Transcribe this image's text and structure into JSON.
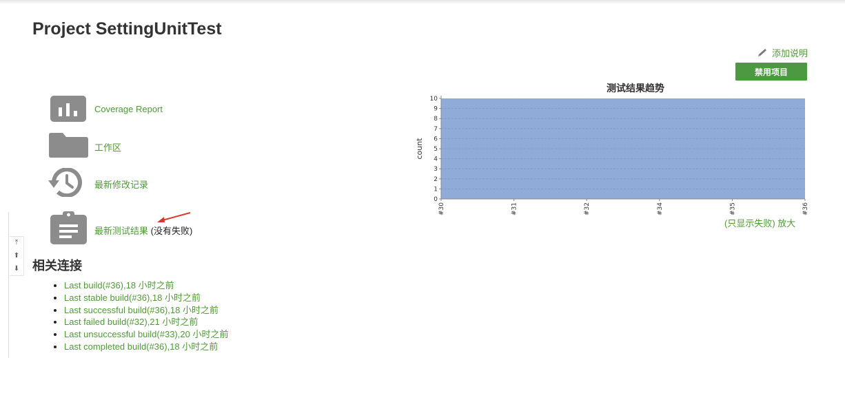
{
  "page": {
    "title": "Project SettingUnitTest"
  },
  "actions": {
    "add_description": "添加说明",
    "disable_project": "禁用项目"
  },
  "tasks": [
    {
      "label": "Coverage Report",
      "icon": "bar-chart-icon"
    },
    {
      "label": "工作区",
      "icon": "folder-icon"
    },
    {
      "label": "最新修改记录",
      "icon": "history-icon"
    },
    {
      "label": "最新测试结果",
      "extra": " (没有失败)",
      "icon": "clipboard-icon"
    }
  ],
  "scroll_controls": {
    "top": "⤒",
    "up": "⬆",
    "down": "⬇"
  },
  "related": {
    "title": "相关连接",
    "links": [
      "Last build(#36),18 小时之前",
      "Last stable build(#36),18 小时之前",
      "Last successful build(#36),18 小时之前",
      "Last failed build(#32),21 小时之前",
      "Last unsuccessful build(#33),20 小时之前",
      "Last completed build(#36),18 小时之前"
    ]
  },
  "chart_data": {
    "type": "area",
    "title": "测试结果趋势",
    "ylabel": "count",
    "xlabel": "",
    "categories": [
      "#30",
      "#31",
      "#32",
      "#34",
      "#35",
      "#36"
    ],
    "series": [
      {
        "values": [
          10,
          10,
          10,
          10,
          10,
          10
        ]
      }
    ],
    "ylim": [
      0,
      10
    ],
    "yticks": [
      0,
      1,
      2,
      3,
      4,
      5,
      6,
      7,
      8,
      9,
      10
    ],
    "grid": true,
    "fill_color": "#91abd8"
  },
  "chart_footer": {
    "only_failures": "(只显示失败)",
    "zoom": "放大"
  },
  "colors": {
    "link": "#4f9a36",
    "button": "#4b9a3f",
    "icon": "#8c8c8c"
  }
}
